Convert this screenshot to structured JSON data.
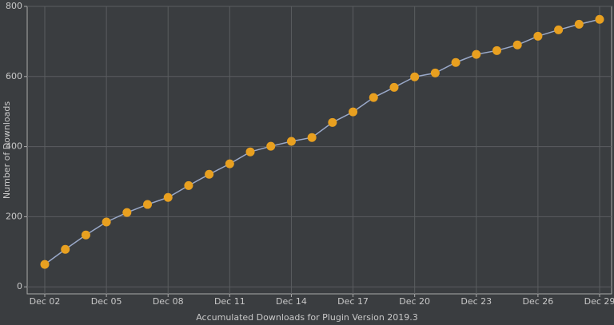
{
  "chart_data": {
    "type": "line",
    "x_label": "Accumulated Downloads for Plugin Version 2019.3",
    "y_label": "Number of Downloads",
    "categories": [
      "Dec 02",
      null,
      null,
      "Dec 05",
      null,
      null,
      "Dec 08",
      null,
      null,
      "Dec 11",
      null,
      null,
      "Dec 14",
      null,
      null,
      "Dec 17",
      null,
      null,
      "Dec 20",
      null,
      null,
      "Dec 23",
      null,
      null,
      "Dec 26",
      null,
      null,
      "Dec 29"
    ],
    "values": [
      64,
      107,
      148,
      185,
      212,
      235,
      255,
      289,
      321,
      351,
      385,
      401,
      415,
      426,
      469,
      499,
      540,
      569,
      599,
      610,
      640,
      663,
      674,
      690,
      715,
      733,
      749,
      763
    ],
    "line_color": "#9aa9c9",
    "marker_color": "#e8a020",
    "ylim": [
      -20,
      800
    ],
    "yticks": [
      0,
      200,
      400,
      600,
      800
    ],
    "grid": true
  }
}
